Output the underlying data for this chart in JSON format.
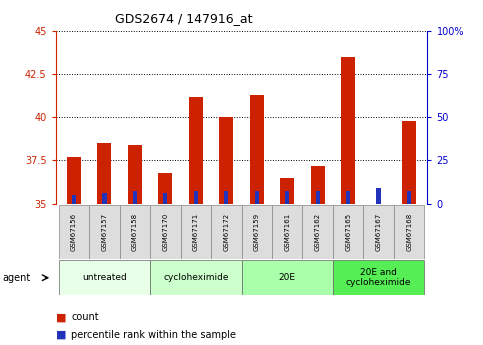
{
  "title": "GDS2674 / 147916_at",
  "samples": [
    "GSM67156",
    "GSM67157",
    "GSM67158",
    "GSM67170",
    "GSM67171",
    "GSM67172",
    "GSM67159",
    "GSM67161",
    "GSM67162",
    "GSM67165",
    "GSM67167",
    "GSM67168"
  ],
  "count_values": [
    37.7,
    38.5,
    38.4,
    36.8,
    41.2,
    40.0,
    41.3,
    36.5,
    37.2,
    43.5,
    35.0,
    39.8
  ],
  "percentile_values": [
    5,
    6,
    7,
    6,
    7,
    7,
    7,
    7,
    7,
    7,
    9,
    7
  ],
  "bar_base": 35.0,
  "ylim_left": [
    35,
    45
  ],
  "ylim_right": [
    0,
    100
  ],
  "yticks_left": [
    35,
    37.5,
    40,
    42.5,
    45
  ],
  "yticks_right": [
    0,
    25,
    50,
    75,
    100
  ],
  "yticklabels_right": [
    "0",
    "25",
    "50",
    "75",
    "100%"
  ],
  "red_color": "#cc2200",
  "blue_color": "#2233bb",
  "grid_color": "black",
  "groups": [
    {
      "label": "untreated",
      "start": 0,
      "end": 3,
      "color": "#e8ffe8"
    },
    {
      "label": "cycloheximide",
      "start": 3,
      "end": 6,
      "color": "#ccffcc"
    },
    {
      "label": "20E",
      "start": 6,
      "end": 9,
      "color": "#aaffaa"
    },
    {
      "label": "20E and\ncycloheximide",
      "start": 9,
      "end": 12,
      "color": "#55ee55"
    }
  ],
  "legend_count_label": "count",
  "legend_pct_label": "percentile rank within the sample",
  "agent_label": "agent",
  "left_axis_color": "#cc2200",
  "right_axis_color": "#0000cc"
}
